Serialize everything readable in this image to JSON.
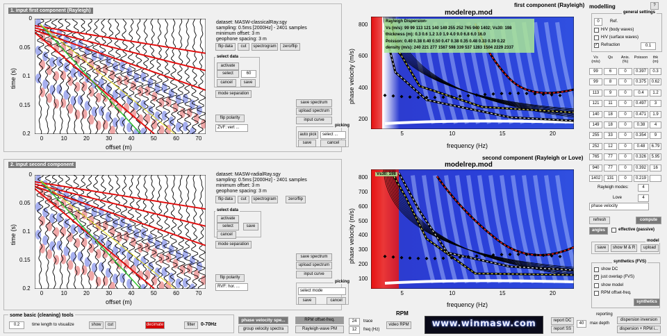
{
  "panel1": {
    "title": "1. input first component (Rayleigh)",
    "info": [
      "dataset: MASW-classicalRay.sgy",
      "sampling: 0.5ms [2000Hz] - 2401 samples",
      "minimum offset: 3 m",
      "geophone spacing: 3 m"
    ],
    "buttons": {
      "flip_data": "flip data",
      "cut": "cut",
      "spectrogram": "spectrogram",
      "zero_flip": "zero/flip",
      "mode_separation": "mode separation",
      "flip_polarity": "flip polarity"
    },
    "select_data": {
      "title": "select data",
      "activate": "activate",
      "select": "select",
      "value": "60",
      "cancel": "cancel",
      "save": "save"
    },
    "polarity_select": "ZVF: vert ...",
    "spectrum": {
      "save": "save spectrum",
      "upload": "upload spectrum",
      "input_curve": "input curve"
    },
    "picking": {
      "title": "picking",
      "auto": "auto pick",
      "mode": "select ...",
      "save": "save",
      "cancel": "cancel"
    },
    "plot": {
      "ylabel": "time (s)",
      "xlabel": "offset (m)",
      "yticks": [
        "0",
        "0.05",
        "0.1",
        "0.15",
        "0.2"
      ],
      "xticks": [
        "0",
        "10",
        "20",
        "30",
        "40",
        "50",
        "60",
        "70"
      ]
    }
  },
  "panel2": {
    "title": "2. input second component",
    "info": [
      "dataset: MASW-radialRay.sgy",
      "sampling: 0.5ms [2000Hz] - 2401 samples",
      "minimum offset: 3 m",
      "geophone spacing: 3 m"
    ],
    "buttons": {
      "flip_data": "flip data",
      "cut": "cut",
      "spectrogram": "spectrogram",
      "zero_flip": "zero/flip",
      "mode_separation": "mode separation",
      "flip_polarity": "flip polarity"
    },
    "select_data": {
      "title": "select data",
      "activate": "activate",
      "select": "select",
      "save": "save",
      "cancel": "cancel"
    },
    "polarity_select": "RVF: hor. ...",
    "spectrum": {
      "save": "save spectrum",
      "upload": "upload spectrum",
      "input_curve": "input curve"
    },
    "picking": {
      "title": "picking",
      "mode": "select mode",
      "save": "save",
      "cancel": "cancel"
    },
    "plot": {
      "ylabel": "time (s)",
      "xlabel": "offset (m)",
      "yticks": [
        "0",
        "0.05",
        "0.1",
        "0.15",
        "0.2"
      ],
      "xticks": [
        "0",
        "10",
        "20",
        "30",
        "40",
        "50",
        "60",
        "70"
      ]
    }
  },
  "spec1": {
    "title": "modelrep.mod",
    "subtitle": "first component (Rayleigh)",
    "ylabel": "phase velocity (m/s)",
    "xlabel": "frequency (Hz)",
    "yticks": [
      "800",
      "600",
      "400",
      "200"
    ],
    "xticks": [
      "5",
      "10",
      "15",
      "20"
    ],
    "dispersion_box": [
      "Rayleigh Dispersion-",
      "Vs (m/s):  99   99  113  121  140  149  255  252  765  940 1402;  Vs30: 198",
      "thickness (m):  0.3   0.6   1.2   3.0   1.9   4.0   9.0   6.8   6.0  16.0",
      "Poisson:  0.40  0.38  0.40  0.50  0.47  0.38  0.35  0.48  0.33  0.39  0.22",
      "density (m/s): 240  221  277 1567  598  339  537 1283 1504 2229 2337"
    ]
  },
  "spec2": {
    "title": "modelrep.mod",
    "subtitle": "second component (Rayleigh or Love)",
    "ylabel": "phase velocity (m/s)",
    "xlabel": "frequency (Hz)",
    "yticks": [
      "800",
      "700",
      "600",
      "500",
      "400",
      "300",
      "200",
      "100"
    ],
    "xticks": [
      "5",
      "10",
      "15",
      "20"
    ],
    "vs30": "Vs30: 198"
  },
  "modelling": {
    "title": "modelling",
    "help": "?",
    "general_settings": "general settings",
    "ref_value": "0",
    "ref_label": "Ref.",
    "hv_body": "H/V (body waves)",
    "hv_surface": "H/V (surface waves)",
    "refraction": "Refraction",
    "refraction_value": "0.1",
    "headers": [
      "Vs\n(m/s)",
      "Qs",
      "Anis.\n(%)",
      "Poisson",
      "thk\n(m)"
    ],
    "rows": [
      [
        "99",
        "6",
        "0",
        "0.397",
        "0.3"
      ],
      [
        "99",
        "8",
        "0",
        "0.375",
        "0.62"
      ],
      [
        "113",
        "9",
        "0",
        "0.4",
        "1.2"
      ],
      [
        "121",
        "11",
        "0",
        "0.497",
        "3"
      ],
      [
        "140",
        "18",
        "0",
        "0.471",
        "1.9"
      ],
      [
        "149",
        "18",
        "0",
        "0.38",
        "4"
      ],
      [
        "255",
        "33",
        "0",
        "0.354",
        "9"
      ],
      [
        "252",
        "12",
        "0",
        "0.48",
        "6.79"
      ],
      [
        "765",
        "77",
        "0",
        "0.326",
        "5.95"
      ],
      [
        "940",
        "77",
        "0",
        "0.392",
        "16"
      ],
      [
        "1402",
        "131",
        "0",
        "0.219",
        ""
      ]
    ],
    "rayleigh_modes_label": "Rayleigh modes:",
    "rayleigh_modes": "4",
    "love_label": "Love",
    "love_modes": "4",
    "velocity_select": "phase velocity",
    "refresh": "refresh",
    "compute": "compute",
    "angles": "angles",
    "effective": "effective (passive)",
    "model_label": "model",
    "save": "save",
    "show_mr": "show M & R",
    "upload": "upload"
  },
  "synthetics": {
    "title": "synthetics (FVS)",
    "show_dc": "show DC",
    "just_overlap": "just overlap (FVS)",
    "show_model": "show model",
    "rpm_offset": "RPM offset-freq.",
    "button": "synthetics"
  },
  "tools": {
    "title": "some basic (cleaning) tools",
    "value": "0.2",
    "time_label": "time length to visualize",
    "show": "show",
    "cut": "cut",
    "decimate": "decimate",
    "filter": "filter",
    "filter_range": "0-70Hz"
  },
  "bottom": {
    "phase_velocity_spectra": "phase velocity spe...",
    "group_velocity_spectra": "group velocity spectra",
    "rpm_title": "RPM",
    "rpm_offset_freq": "RPM offset-freq.",
    "rayleigh_wave_pm": "Rayleigh-wave PM",
    "trace_value": "24",
    "trace_label": "trace",
    "freq_value": "12",
    "freq_label": "freq (Hz)",
    "video_rpm": "video RPM",
    "logo": "www.winmasw.com",
    "report_dc": "report DC",
    "report_ss": "report SS",
    "reporting": "reporting",
    "max_depth_value": "40",
    "max_depth_label": "max depth",
    "dispersion_inversion": "dispersion inversion",
    "dispersion_rpm": "dispersion + RPM i..."
  }
}
